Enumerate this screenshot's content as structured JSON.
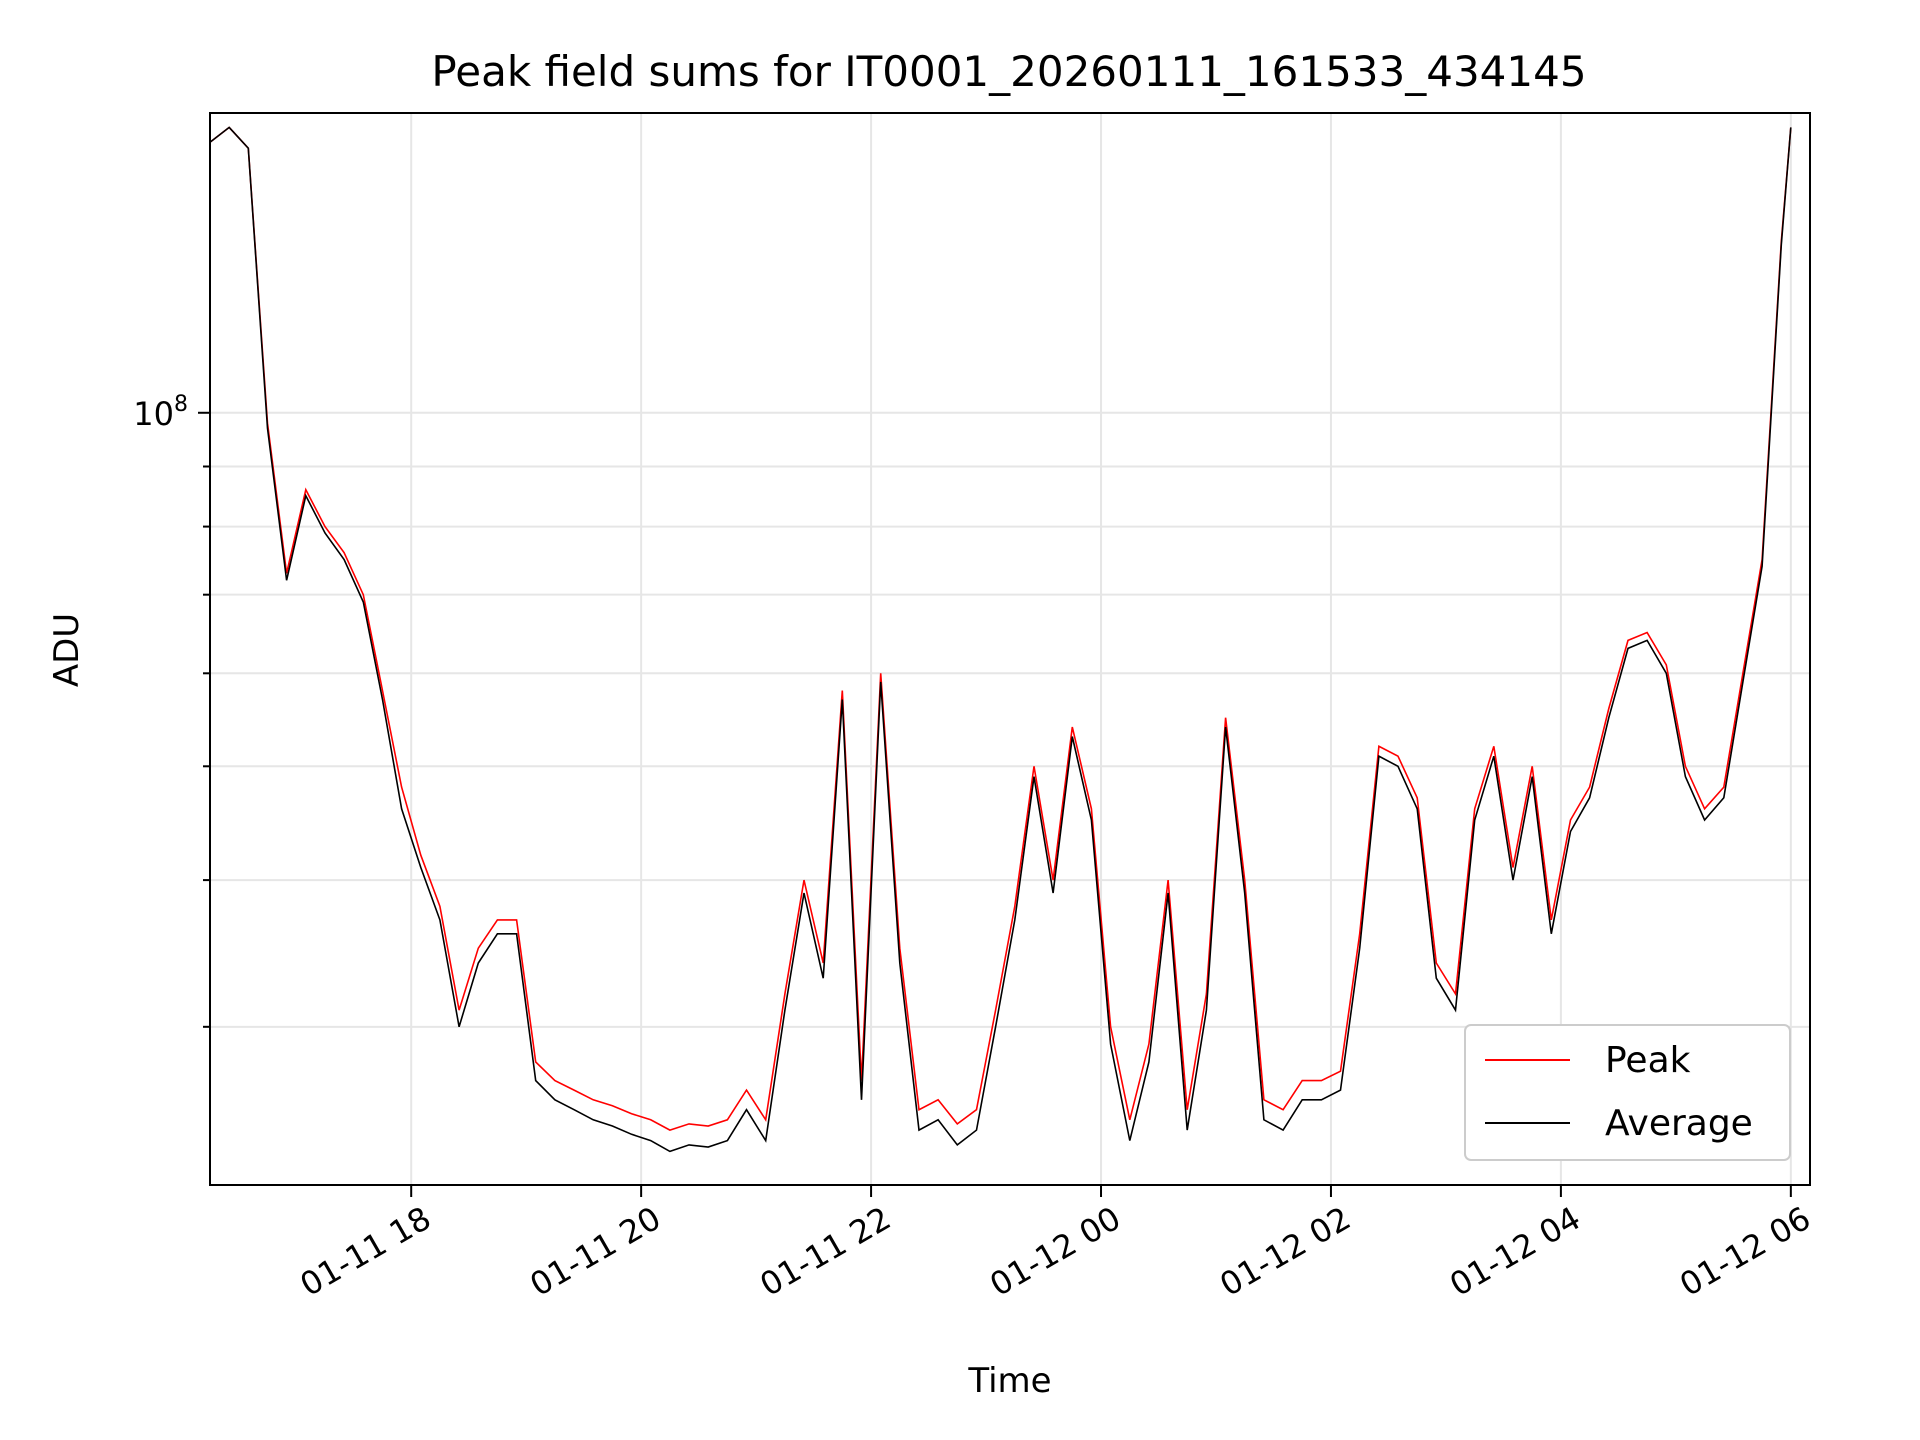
{
  "chart_data": {
    "type": "line",
    "title": "Peak field sums for IT0001_20260111_161533_434145",
    "xlabel": "Time",
    "ylabel": "ADU",
    "yscale": "log",
    "xlim": [
      "2026-01-11 16:15",
      "2026-01-12 06:10"
    ],
    "ylim": [
      22000000,
      180000000
    ],
    "y_tick_labels": [
      {
        "value": 100000000,
        "base": "10",
        "exp": "8"
      }
    ],
    "x_tick_labels": [
      {
        "value": "2026-01-11 18:00",
        "label": "01-11 18"
      },
      {
        "value": "2026-01-11 20:00",
        "label": "01-11 20"
      },
      {
        "value": "2026-01-11 22:00",
        "label": "01-11 22"
      },
      {
        "value": "2026-01-12 00:00",
        "label": "01-12 00"
      },
      {
        "value": "2026-01-12 02:00",
        "label": "01-12 02"
      },
      {
        "value": "2026-01-12 04:00",
        "label": "01-12 04"
      },
      {
        "value": "2026-01-12 06:00",
        "label": "01-12 06"
      }
    ],
    "grid": true,
    "legend_position": "lower-right",
    "x": [
      "2026-01-11 16:15",
      "2026-01-11 16:25",
      "2026-01-11 16:35",
      "2026-01-11 16:45",
      "2026-01-11 16:55",
      "2026-01-11 17:05",
      "2026-01-11 17:15",
      "2026-01-11 17:25",
      "2026-01-11 17:35",
      "2026-01-11 17:45",
      "2026-01-11 17:55",
      "2026-01-11 18:05",
      "2026-01-11 18:15",
      "2026-01-11 18:25",
      "2026-01-11 18:35",
      "2026-01-11 18:45",
      "2026-01-11 18:55",
      "2026-01-11 19:05",
      "2026-01-11 19:15",
      "2026-01-11 19:25",
      "2026-01-11 19:35",
      "2026-01-11 19:45",
      "2026-01-11 19:55",
      "2026-01-11 20:05",
      "2026-01-11 20:15",
      "2026-01-11 20:25",
      "2026-01-11 20:35",
      "2026-01-11 20:45",
      "2026-01-11 20:55",
      "2026-01-11 21:05",
      "2026-01-11 21:15",
      "2026-01-11 21:25",
      "2026-01-11 21:35",
      "2026-01-11 21:45",
      "2026-01-11 21:55",
      "2026-01-11 22:05",
      "2026-01-11 22:15",
      "2026-01-11 22:25",
      "2026-01-11 22:35",
      "2026-01-11 22:45",
      "2026-01-11 22:55",
      "2026-01-11 23:05",
      "2026-01-11 23:15",
      "2026-01-11 23:25",
      "2026-01-11 23:35",
      "2026-01-11 23:45",
      "2026-01-11 23:55",
      "2026-01-12 00:05",
      "2026-01-12 00:15",
      "2026-01-12 00:25",
      "2026-01-12 00:35",
      "2026-01-12 00:45",
      "2026-01-12 00:55",
      "2026-01-12 01:05",
      "2026-01-12 01:15",
      "2026-01-12 01:25",
      "2026-01-12 01:35",
      "2026-01-12 01:45",
      "2026-01-12 01:55",
      "2026-01-12 02:05",
      "2026-01-12 02:15",
      "2026-01-12 02:25",
      "2026-01-12 02:35",
      "2026-01-12 02:45",
      "2026-01-12 02:55",
      "2026-01-12 03:05",
      "2026-01-12 03:15",
      "2026-01-12 03:25",
      "2026-01-12 03:35",
      "2026-01-12 03:45",
      "2026-01-12 03:55",
      "2026-01-12 04:05",
      "2026-01-12 04:15",
      "2026-01-12 04:25",
      "2026-01-12 04:35",
      "2026-01-12 04:45",
      "2026-01-12 04:55",
      "2026-01-12 05:05",
      "2026-01-12 05:15",
      "2026-01-12 05:25",
      "2026-01-12 05:35",
      "2026-01-12 05:45",
      "2026-01-12 05:55",
      "2026-01-12 06:00"
    ],
    "series": [
      {
        "name": "Peak",
        "color": "#ff0000",
        "values": [
          170000000,
          175000000,
          168000000,
          98000000,
          73000000,
          86000000,
          80000000,
          76000000,
          70000000,
          58000000,
          48000000,
          42000000,
          38000000,
          31000000,
          35000000,
          37000000,
          37000000,
          28000000,
          27000000,
          26500000,
          26000000,
          25700000,
          25300000,
          25000000,
          24500000,
          24800000,
          24700000,
          25000000,
          26500000,
          25000000,
          32000000,
          40000000,
          34000000,
          58000000,
          27000000,
          60000000,
          35000000,
          25500000,
          26000000,
          24800000,
          25500000,
          31000000,
          38000000,
          50000000,
          40000000,
          54000000,
          46000000,
          30000000,
          25000000,
          29000000,
          40000000,
          25500000,
          32000000,
          55000000,
          40000000,
          26000000,
          25500000,
          27000000,
          27000000,
          27500000,
          36000000,
          52000000,
          51000000,
          47000000,
          34000000,
          32000000,
          46000000,
          52000000,
          41000000,
          50000000,
          37000000,
          45000000,
          48000000,
          56000000,
          64000000,
          65000000,
          61000000,
          50000000,
          46000000,
          48000000,
          60000000,
          75000000,
          140000000,
          175000000
        ]
      },
      {
        "name": "Average",
        "color": "#000000",
        "values": [
          170000000,
          175000000,
          168000000,
          97000000,
          72000000,
          85000000,
          79000000,
          75000000,
          69000000,
          57000000,
          46000000,
          41000000,
          37000000,
          30000000,
          34000000,
          36000000,
          36000000,
          27000000,
          26000000,
          25500000,
          25000000,
          24700000,
          24300000,
          24000000,
          23500000,
          23800000,
          23700000,
          24000000,
          25500000,
          24000000,
          31000000,
          39000000,
          33000000,
          57000000,
          26000000,
          59000000,
          34000000,
          24500000,
          25000000,
          23800000,
          24500000,
          30000000,
          37000000,
          49000000,
          39000000,
          53000000,
          45000000,
          29000000,
          24000000,
          28000000,
          39000000,
          24500000,
          31000000,
          54000000,
          39000000,
          25000000,
          24500000,
          26000000,
          26000000,
          26500000,
          35000000,
          51000000,
          50000000,
          46000000,
          33000000,
          31000000,
          45000000,
          51000000,
          40000000,
          49000000,
          36000000,
          44000000,
          47000000,
          55000000,
          63000000,
          64000000,
          60000000,
          49000000,
          45000000,
          47000000,
          59000000,
          74000000,
          139000000,
          175000000
        ]
      }
    ]
  }
}
